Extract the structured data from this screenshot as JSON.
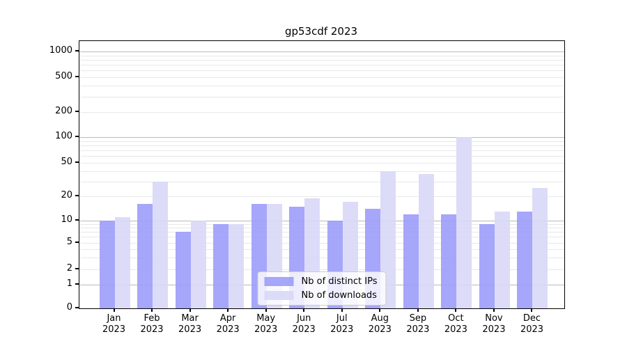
{
  "chart_data": {
    "type": "bar",
    "title": "gp53cdf 2023",
    "categories": [
      "Jan",
      "Feb",
      "Mar",
      "Apr",
      "May",
      "Jun",
      "Jul",
      "Aug",
      "Sep",
      "Oct",
      "Nov",
      "Dec"
    ],
    "x_year_label": "2023",
    "series": [
      {
        "name": "Nb of distinct IPs",
        "color": "#9a9af9",
        "values": [
          10,
          16,
          7,
          9,
          16,
          15,
          10,
          14,
          12,
          12,
          9,
          13
        ]
      },
      {
        "name": "Nb of downloads",
        "color": "#d7d7f7",
        "values": [
          11,
          30,
          10,
          9,
          16,
          19,
          17,
          40,
          37,
          100,
          13,
          25
        ]
      }
    ],
    "xlabel": "",
    "ylabel": "",
    "y_axis": {
      "scale": "log-like",
      "ticks": [
        0,
        1,
        2,
        5,
        10,
        20,
        50,
        100,
        200,
        500,
        1000
      ],
      "range_top": 1300
    },
    "grid": {
      "shown": true,
      "major_color": "#b9b9b9",
      "minor_color": "#e8e8e8"
    },
    "legend": {
      "position": "lower-center",
      "entries": [
        "Nb of distinct IPs",
        "Nb of downloads"
      ]
    },
    "background_color": "#ffffff"
  }
}
